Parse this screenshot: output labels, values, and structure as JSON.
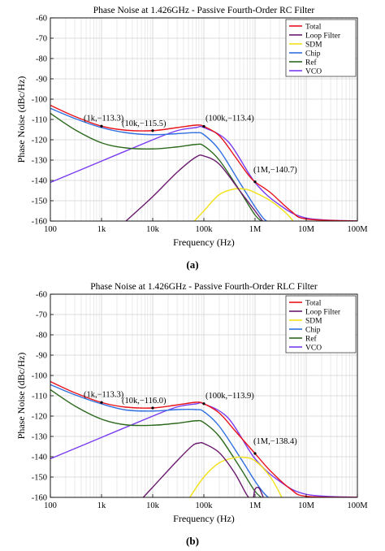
{
  "captions": [
    "(a)",
    "(b)"
  ],
  "colors": {
    "total": "#e8131b",
    "loop_filter": "#6a1a6e",
    "sdm": "#f2e21a",
    "chip": "#2f6fe0",
    "ref": "#2d6a1e",
    "vco": "#7a3cf0",
    "grid": "#d0d0d0"
  },
  "chart_data": [
    {
      "type": "line",
      "title": "Phase Noise at 1.426GHz - Passive Fourth-Order RC Filter",
      "xlabel": "Frequency (Hz)",
      "ylabel": "Phase Noise (dBc/Hz)",
      "xscale": "log",
      "xlim": [
        100,
        100000000
      ],
      "ylim": [
        -160,
        -60
      ],
      "xticks": [
        100,
        1000,
        10000,
        100000,
        1000000,
        10000000,
        100000000
      ],
      "xtick_labels": [
        "100",
        "1k",
        "10k",
        "100k",
        "1M",
        "10M",
        "100M"
      ],
      "yticks": [
        -160,
        -150,
        -140,
        -130,
        -120,
        -110,
        -100,
        -90,
        -80,
        -70,
        -60
      ],
      "grid": true,
      "legend_position": "top-right",
      "annotations": [
        {
          "x": 1000,
          "y": -113.3,
          "label": "(1k,−113.3)"
        },
        {
          "x": 10000,
          "y": -115.5,
          "label": "(10k,−115.5)"
        },
        {
          "x": 100000,
          "y": -113.4,
          "label": "(100k,−113.4)"
        },
        {
          "x": 1000000,
          "y": -140.7,
          "label": "(1M,−140.7)"
        }
      ],
      "series": [
        {
          "name": "Total",
          "color_key": "total",
          "x": [
            100,
            300,
            1000,
            3000,
            10000,
            30000,
            70000,
            100000,
            200000,
            400000,
            700000,
            1000000,
            2000000,
            5000000,
            10000000,
            100000000
          ],
          "y": [
            -103,
            -108.5,
            -113.3,
            -115.3,
            -115.5,
            -114,
            -112.8,
            -113.4,
            -118,
            -128,
            -136.5,
            -140.7,
            -146,
            -155,
            -159,
            -160
          ]
        },
        {
          "name": "Loop Filter",
          "color_key": "loop_filter",
          "x": [
            3000,
            10000,
            30000,
            70000,
            100000,
            200000,
            500000,
            1000000,
            1500000
          ],
          "y": [
            -160,
            -148,
            -136,
            -128.5,
            -128,
            -132,
            -145,
            -155,
            -161
          ]
        },
        {
          "name": "SDM",
          "color_key": "sdm",
          "x": [
            60000,
            100000,
            200000,
            400000,
            700000,
            1000000,
            2000000,
            4000000,
            6000000
          ],
          "y": [
            -161,
            -155,
            -147,
            -144.2,
            -144.5,
            -146,
            -150,
            -156,
            -161
          ]
        },
        {
          "name": "Chip",
          "color_key": "chip",
          "x": [
            100,
            300,
            1000,
            3000,
            10000,
            30000,
            70000,
            100000,
            200000,
            500000,
            1000000,
            1500000,
            2000000
          ],
          "y": [
            -104.5,
            -109.5,
            -114,
            -116.5,
            -117.5,
            -117,
            -116.5,
            -117.5,
            -125,
            -141,
            -153,
            -159,
            -161
          ]
        },
        {
          "name": "Ref",
          "color_key": "ref",
          "x": [
            100,
            300,
            1000,
            3000,
            10000,
            30000,
            70000,
            100000,
            200000,
            500000,
            1000000,
            1500000
          ],
          "y": [
            -107,
            -115,
            -121.5,
            -124,
            -124.5,
            -123.5,
            -122.3,
            -123,
            -130,
            -145,
            -157,
            -161
          ]
        },
        {
          "name": "VCO",
          "color_key": "vco",
          "x": [
            100,
            1000,
            10000,
            30000,
            70000,
            100000,
            300000,
            1000000,
            3000000,
            10000000,
            100000000
          ],
          "y": [
            -141,
            -130.5,
            -120,
            -115.5,
            -114,
            -114,
            -121,
            -141,
            -152,
            -158.5,
            -160
          ]
        }
      ]
    },
    {
      "type": "line",
      "title": "Phase Noise at 1.426GHz - Passive Fourth-Order RLC Filter",
      "xlabel": "Frequency (Hz)",
      "ylabel": "Phase Noise (dBc/Hz)",
      "xscale": "log",
      "xlim": [
        100,
        100000000
      ],
      "ylim": [
        -160,
        -60
      ],
      "xticks": [
        100,
        1000,
        10000,
        100000,
        1000000,
        10000000,
        100000000
      ],
      "xtick_labels": [
        "100",
        "1k",
        "10k",
        "100k",
        "1M",
        "10M",
        "100M"
      ],
      "yticks": [
        -160,
        -150,
        -140,
        -130,
        -120,
        -110,
        -100,
        -90,
        -80,
        -70,
        -60
      ],
      "grid": true,
      "legend_position": "top-right",
      "annotations": [
        {
          "x": 1000,
          "y": -113.3,
          "label": "(1k,−113.3)"
        },
        {
          "x": 10000,
          "y": -116.0,
          "label": "(10k,−116.0)"
        },
        {
          "x": 100000,
          "y": -113.9,
          "label": "(100k,−113.9)"
        },
        {
          "x": 1000000,
          "y": -138.4,
          "label": "(1M,−138.4)"
        }
      ],
      "series": [
        {
          "name": "Total",
          "color_key": "total",
          "x": [
            100,
            300,
            1000,
            3000,
            10000,
            30000,
            70000,
            100000,
            200000,
            400000,
            700000,
            1000000,
            2000000,
            5000000,
            10000000,
            100000000
          ],
          "y": [
            -103,
            -108.5,
            -113.3,
            -115.6,
            -116,
            -114.5,
            -113.2,
            -113.9,
            -118.5,
            -127,
            -134,
            -138.4,
            -147,
            -156,
            -159.5,
            -160
          ]
        },
        {
          "name": "Loop Filter",
          "color_key": "loop_filter",
          "x": [
            6000,
            10000,
            30000,
            60000,
            80000,
            100000,
            200000,
            400000,
            700000,
            900000,
            1000000,
            1200000,
            1500000
          ],
          "y": [
            -161,
            -155,
            -142,
            -134.5,
            -133.3,
            -133.5,
            -138,
            -148,
            -159,
            -161,
            -156,
            -155.5,
            -161
          ]
        },
        {
          "name": "SDM",
          "color_key": "sdm",
          "x": [
            50000,
            100000,
            200000,
            400000,
            600000,
            1000000,
            2000000,
            3500000
          ],
          "y": [
            -161,
            -150,
            -143,
            -140.5,
            -140.3,
            -142,
            -150,
            -161
          ]
        },
        {
          "name": "Chip",
          "color_key": "chip",
          "x": [
            100,
            300,
            1000,
            3000,
            10000,
            30000,
            70000,
            100000,
            200000,
            500000,
            1000000,
            1500000,
            2000000
          ],
          "y": [
            -104.5,
            -109.5,
            -114,
            -117,
            -117.5,
            -116.8,
            -116.8,
            -117.8,
            -125,
            -140,
            -152,
            -158,
            -161
          ]
        },
        {
          "name": "Ref",
          "color_key": "ref",
          "x": [
            100,
            300,
            1000,
            3000,
            10000,
            30000,
            70000,
            100000,
            200000,
            500000,
            1000000,
            1500000
          ],
          "y": [
            -107,
            -115,
            -121.5,
            -124.3,
            -124.5,
            -123.5,
            -122.3,
            -123.2,
            -130,
            -145,
            -157,
            -161
          ]
        },
        {
          "name": "VCO",
          "color_key": "vco",
          "x": [
            100,
            1000,
            10000,
            30000,
            70000,
            100000,
            300000,
            1000000,
            3000000,
            10000000,
            100000000
          ],
          "y": [
            -141,
            -130.5,
            -120,
            -115.5,
            -114,
            -114,
            -121,
            -141,
            -152,
            -158.5,
            -160
          ]
        }
      ]
    }
  ]
}
